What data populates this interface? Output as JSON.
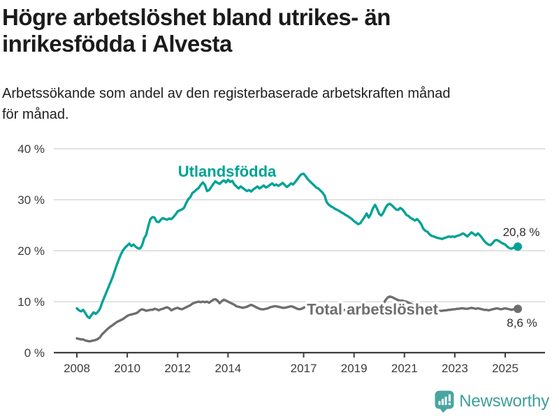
{
  "header": {
    "title_line1": "Högre arbetslöshet bland utrikes- än",
    "title_line2": "inrikesfödda i Alvesta",
    "subtitle_line1": "Arbetssökande som andel av den registerbaserade arbetskraften månad",
    "subtitle_line2": "för månad."
  },
  "footer": {
    "brand_name": "Newsworthy",
    "brand_color": "#3f9e99",
    "logo_icon": "bar-chart-speech-bubble-icon",
    "logo_fill": "#4aa5a0"
  },
  "chart_data": {
    "type": "line",
    "title": "Högre arbetslöshet bland utrikes- än inrikesfödda i Alvesta",
    "subtitle": "Arbetssökande som andel av den registerbaserade arbetskraften månad för månad.",
    "unit": "%",
    "x_start_year": 2008,
    "x_interval": "monthly",
    "x_tick_years": [
      2008,
      2010,
      2012,
      2014,
      2017,
      2019,
      2021,
      2023,
      2025
    ],
    "x_tick_labels": [
      "2008",
      "2010",
      "2012",
      "2014",
      "2017",
      "2019",
      "2021",
      "2023",
      "2025"
    ],
    "y_ticks": [
      0,
      10,
      20,
      30,
      40
    ],
    "y_tick_labels": [
      "0 %",
      "10 %",
      "20 %",
      "30 %",
      "40 %"
    ],
    "ylim": [
      0,
      40
    ],
    "grid": "horizontal-only",
    "legend": "inline-series-labels",
    "axis_color": "#3d3d3d",
    "grid_color": "#d9d9d9",
    "annotation_color": "#2e2e2e",
    "series": [
      {
        "name": "Utlandsfödda",
        "color": "#00a296",
        "end_label": "20,8 %",
        "end_value": 20.8,
        "values": [
          8.7,
          8.3,
          8.1,
          8.4,
          7.8,
          7.1,
          6.8,
          7.4,
          7.9,
          7.6,
          8.0,
          8.6,
          9.8,
          10.8,
          11.8,
          12.8,
          13.8,
          14.8,
          16.0,
          17.2,
          18.3,
          19.3,
          20.1,
          20.6,
          21.0,
          21.4,
          20.9,
          21.2,
          20.8,
          20.5,
          20.4,
          21.0,
          22.4,
          23.1,
          24.8,
          26.2,
          26.6,
          26.5,
          25.7,
          25.6,
          26.1,
          26.4,
          26.2,
          26.1,
          26.3,
          26.2,
          26.6,
          27.1,
          27.7,
          27.9,
          28.1,
          28.4,
          29.3,
          30.1,
          30.5,
          31.3,
          31.6,
          32.0,
          32.3,
          32.9,
          33.4,
          32.9,
          31.7,
          31.9,
          32.5,
          33.1,
          33.6,
          33.3,
          33.1,
          33.5,
          33.8,
          33.4,
          33.9,
          33.5,
          33.7,
          33.0,
          32.6,
          32.2,
          32.6,
          32.3,
          32.0,
          31.7,
          31.9,
          31.6,
          32.0,
          32.3,
          32.6,
          32.2,
          32.5,
          32.8,
          32.4,
          32.6,
          32.9,
          33.2,
          32.8,
          33.0,
          32.7,
          33.0,
          33.3,
          32.9,
          32.5,
          32.8,
          33.2,
          33.0,
          33.5,
          34.0,
          34.6,
          35.0,
          35.1,
          34.6,
          34.0,
          33.6,
          33.2,
          32.8,
          32.4,
          32.2,
          31.8,
          31.4,
          30.8,
          29.5,
          29.0,
          28.7,
          28.5,
          28.2,
          28.0,
          27.8,
          27.5,
          27.3,
          27.0,
          26.8,
          26.5,
          26.2,
          25.8,
          25.5,
          25.2,
          25.4,
          26.0,
          26.6,
          27.3,
          26.5,
          27.2,
          28.3,
          29.0,
          28.2,
          27.2,
          26.9,
          27.5,
          28.4,
          29.0,
          29.2,
          28.9,
          28.5,
          28.1,
          28.0,
          28.4,
          28.1,
          27.6,
          27.0,
          26.8,
          26.4,
          26.2,
          25.9,
          26.2,
          25.8,
          25.2,
          24.3,
          23.9,
          23.7,
          23.2,
          22.9,
          22.8,
          22.6,
          22.5,
          22.4,
          22.3,
          22.5,
          22.6,
          22.8,
          22.7,
          22.8,
          22.7,
          22.9,
          23.0,
          23.2,
          23.4,
          23.1,
          22.8,
          23.2,
          23.6,
          23.3,
          23.0,
          23.4,
          23.0,
          22.5,
          21.9,
          21.5,
          21.2,
          21.1,
          21.5,
          22.0,
          22.1,
          21.9,
          21.6,
          21.4,
          21.2,
          20.8,
          20.5,
          20.4,
          20.6,
          20.4,
          20.8
        ]
      },
      {
        "name": "Total arbetslöshet",
        "color": "#6e6e6e",
        "end_label": "8,6 %",
        "end_value": 8.6,
        "values": [
          2.8,
          2.7,
          2.6,
          2.6,
          2.4,
          2.3,
          2.2,
          2.3,
          2.4,
          2.5,
          2.7,
          3.0,
          3.6,
          4.0,
          4.4,
          4.8,
          5.1,
          5.4,
          5.7,
          6.0,
          6.2,
          6.4,
          6.6,
          6.9,
          7.2,
          7.4,
          7.5,
          7.6,
          7.7,
          7.9,
          8.3,
          8.5,
          8.4,
          8.2,
          8.3,
          8.4,
          8.4,
          8.6,
          8.5,
          8.3,
          8.5,
          8.6,
          8.8,
          8.9,
          8.7,
          8.3,
          8.5,
          8.7,
          8.8,
          8.6,
          8.5,
          8.7,
          8.9,
          9.1,
          9.3,
          9.6,
          9.8,
          9.9,
          10.0,
          9.9,
          10.0,
          9.9,
          10.0,
          9.8,
          10.1,
          10.4,
          10.5,
          10.2,
          9.7,
          10.1,
          10.4,
          10.2,
          10.0,
          9.8,
          9.6,
          9.4,
          9.1,
          9.0,
          8.9,
          8.8,
          8.9,
          9.0,
          9.2,
          9.4,
          9.2,
          9.0,
          8.8,
          8.6,
          8.5,
          8.5,
          8.6,
          8.7,
          8.9,
          9.0,
          9.1,
          9.1,
          9.0,
          8.9,
          8.8,
          8.8,
          8.9,
          9.0,
          9.1,
          9.0,
          8.8,
          8.6,
          8.5,
          8.6,
          8.8,
          9.1,
          9.3,
          9.4,
          9.3,
          9.2,
          9.1,
          9.0,
          8.9,
          8.8,
          8.7,
          8.6,
          8.6,
          8.5,
          8.5,
          8.4,
          8.3,
          8.3,
          8.4,
          8.4,
          8.3,
          8.3,
          8.4,
          8.5,
          8.5,
          8.4,
          8.4,
          8.5,
          8.6,
          8.8,
          8.9,
          8.8,
          8.9,
          9.1,
          9.2,
          9.1,
          9.2,
          9.3,
          9.6,
          10.3,
          10.8,
          11.0,
          10.9,
          10.7,
          10.5,
          10.3,
          10.2,
          10.2,
          10.1,
          10.0,
          9.8,
          9.6,
          9.4,
          9.2,
          9.1,
          9.0,
          8.9,
          8.7,
          8.6,
          8.5,
          8.4,
          8.3,
          8.2,
          8.2,
          8.1,
          8.2,
          8.2,
          8.3,
          8.3,
          8.4,
          8.4,
          8.5,
          8.5,
          8.6,
          8.6,
          8.7,
          8.7,
          8.6,
          8.6,
          8.7,
          8.8,
          8.7,
          8.6,
          8.7,
          8.6,
          8.5,
          8.4,
          8.4,
          8.3,
          8.4,
          8.5,
          8.6,
          8.7,
          8.6,
          8.5,
          8.6,
          8.7,
          8.6,
          8.5,
          8.4,
          8.5,
          8.6,
          8.6
        ]
      }
    ]
  }
}
